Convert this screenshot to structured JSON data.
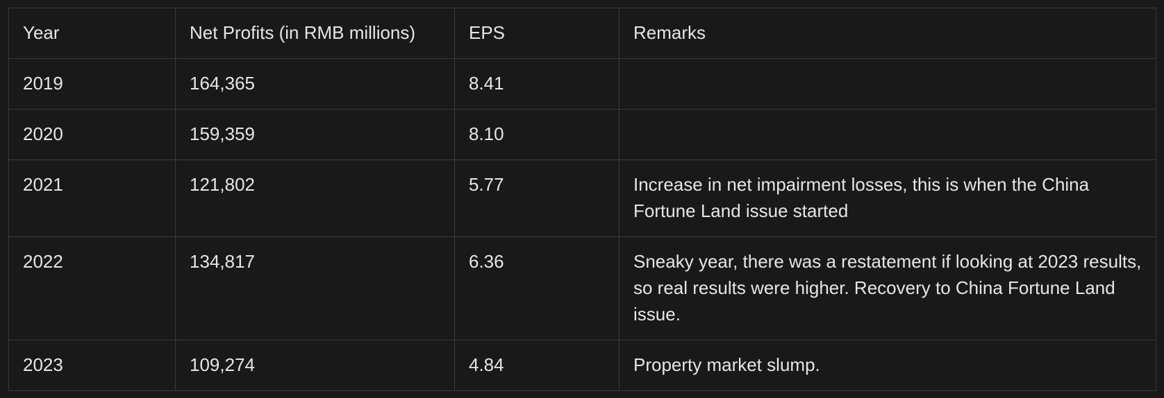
{
  "table": {
    "headers": [
      "Year",
      "Net Profits (in RMB millions)",
      "EPS",
      "Remarks"
    ],
    "rows": [
      {
        "year": "2019",
        "net_profits": "164,365",
        "eps": "8.41",
        "remarks": ""
      },
      {
        "year": "2020",
        "net_profits": "159,359",
        "eps": "8.10",
        "remarks": ""
      },
      {
        "year": "2021",
        "net_profits": "121,802",
        "eps": "5.77",
        "remarks": "Increase in net impairment losses, this is when the China Fortune Land issue started"
      },
      {
        "year": "2022",
        "net_profits": "134,817",
        "eps": "6.36",
        "remarks": "Sneaky year, there was a restatement if looking at 2023 results, so real results were higher. Recovery to China Fortune Land issue."
      },
      {
        "year": "2023",
        "net_profits": "109,274",
        "eps": "4.84",
        "remarks": "Property market slump."
      }
    ]
  },
  "colors": {
    "background": "#191919",
    "border": "#3b3b3b",
    "text": "#e6e6e6"
  }
}
